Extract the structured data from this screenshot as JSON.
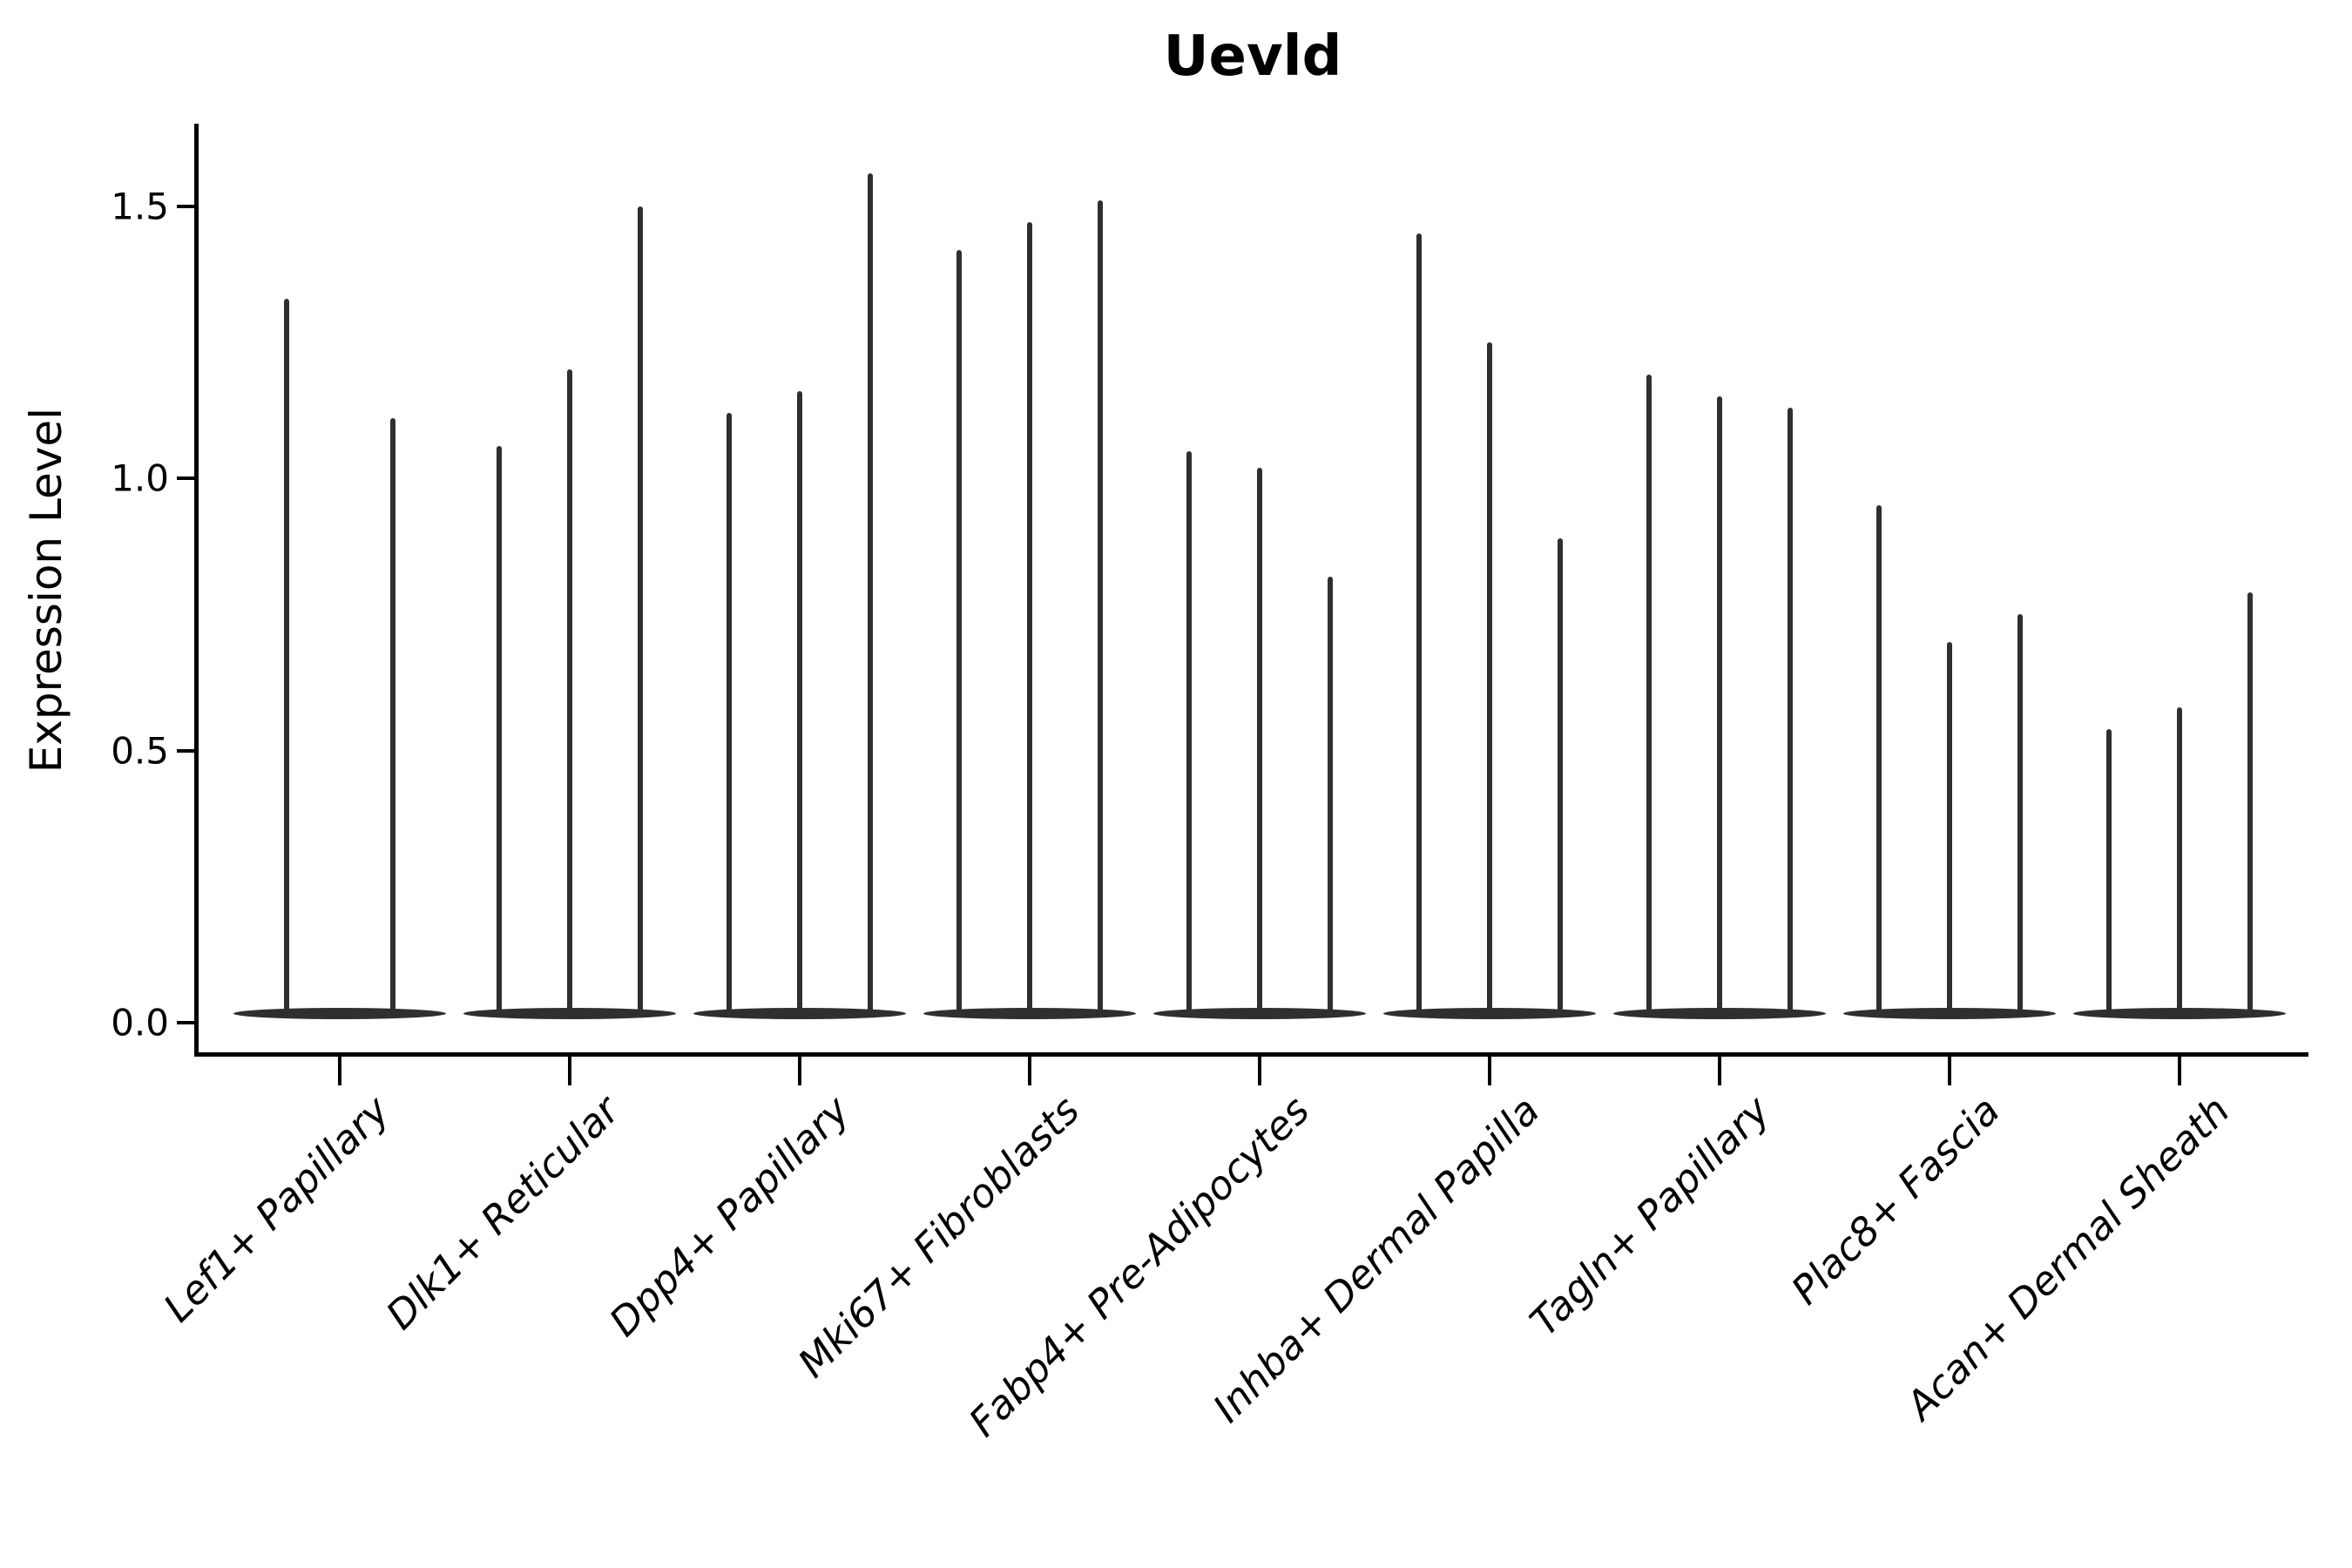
{
  "chart_data": {
    "type": "violin",
    "title": "Uevld",
    "xlabel": "",
    "ylabel": "Expression Level",
    "yticks": [
      0.0,
      0.5,
      1.0,
      1.5
    ],
    "ytick_labels": [
      "0.0",
      "0.5",
      "1.0",
      "1.5"
    ],
    "ylim": [
      -0.06,
      1.65
    ],
    "grid": "off",
    "legend": "none",
    "description": "Single-cell expression violin plot; each cell-type group contains narrow spike-shaped violins (flat dense base at 0 with a thin spike up to the maximum expression value).",
    "categories": [
      "Lef1+ Papillary",
      "Dlk1+ Reticular",
      "Dpp4+ Papillary",
      "Mki67+ Fibroblasts",
      "Fabp4+ Pre-Adipocytes",
      "Inhba+ Dermal Papilla",
      "Tagln+ Papillary",
      "Plac8+ Fascia",
      "Acan+ Dermal Sheath"
    ],
    "series": [
      {
        "name": "Lef1+ Papillary",
        "values": [
          1.33,
          1.11
        ]
      },
      {
        "name": "Dlk1+ Reticular",
        "values": [
          1.06,
          1.2,
          1.5
        ]
      },
      {
        "name": "Dpp4+ Papillary",
        "values": [
          1.12,
          1.16,
          1.56
        ]
      },
      {
        "name": "Mki67+ Fibroblasts",
        "values": [
          1.42,
          1.47,
          1.51
        ]
      },
      {
        "name": "Fabp4+ Pre-Adipocytes",
        "values": [
          1.05,
          1.02,
          0.82
        ]
      },
      {
        "name": "Inhba+ Dermal Papilla",
        "values": [
          1.45,
          1.25,
          0.89
        ]
      },
      {
        "name": "Tagln+ Papillary",
        "values": [
          1.19,
          1.15,
          1.13
        ]
      },
      {
        "name": "Plac8+ Fascia",
        "values": [
          0.95,
          0.7,
          0.75
        ]
      },
      {
        "name": "Acan+ Dermal Sheath",
        "values": [
          0.54,
          0.58,
          0.79
        ]
      }
    ],
    "colors": {
      "violin": "#2f2f2f",
      "axis": "#000000",
      "text": "#000000",
      "background": "#ffffff"
    }
  }
}
